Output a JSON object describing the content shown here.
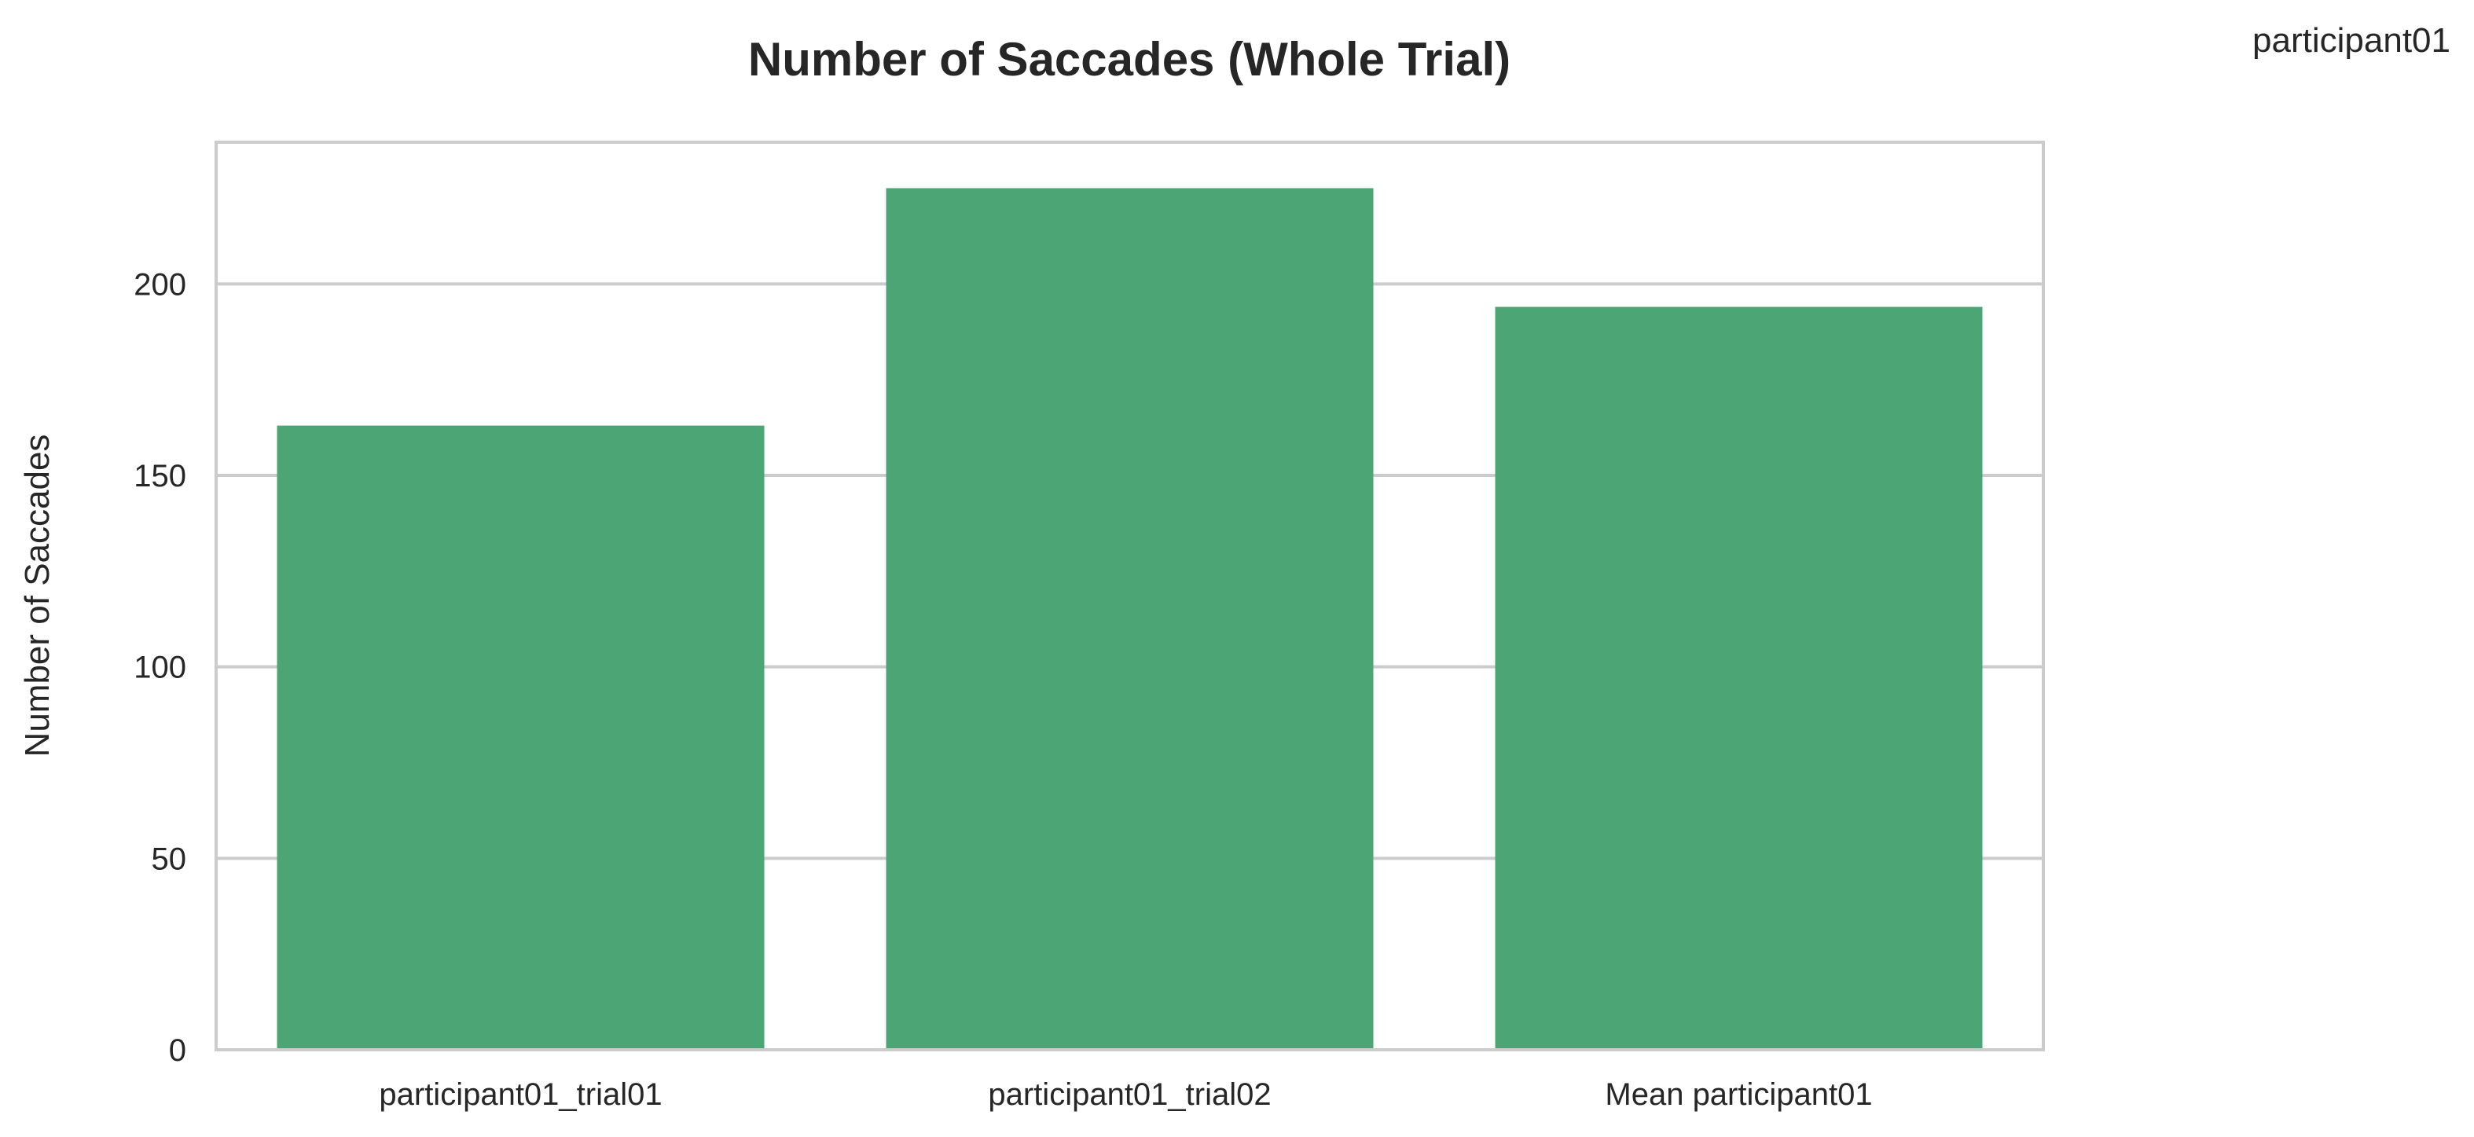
{
  "chart_data": {
    "type": "bar",
    "title": "Number of Saccades (Whole Trial)",
    "corner_label": "participant01",
    "xlabel": "",
    "ylabel": "Number of Saccades",
    "categories": [
      "participant01_trial01",
      "participant01_trial02",
      "Mean participant01"
    ],
    "values": [
      163,
      225,
      194
    ],
    "ylim": [
      0,
      237
    ],
    "yticks": [
      0,
      50,
      100,
      150,
      200
    ],
    "ytick_labels": [
      "0",
      "50",
      "100",
      "150",
      "200"
    ],
    "grid": "y",
    "legend": "none",
    "colors": {
      "bar": "#4ca574",
      "grid": "#cccccc",
      "frame": "#cccccc",
      "text": "#262626"
    }
  }
}
